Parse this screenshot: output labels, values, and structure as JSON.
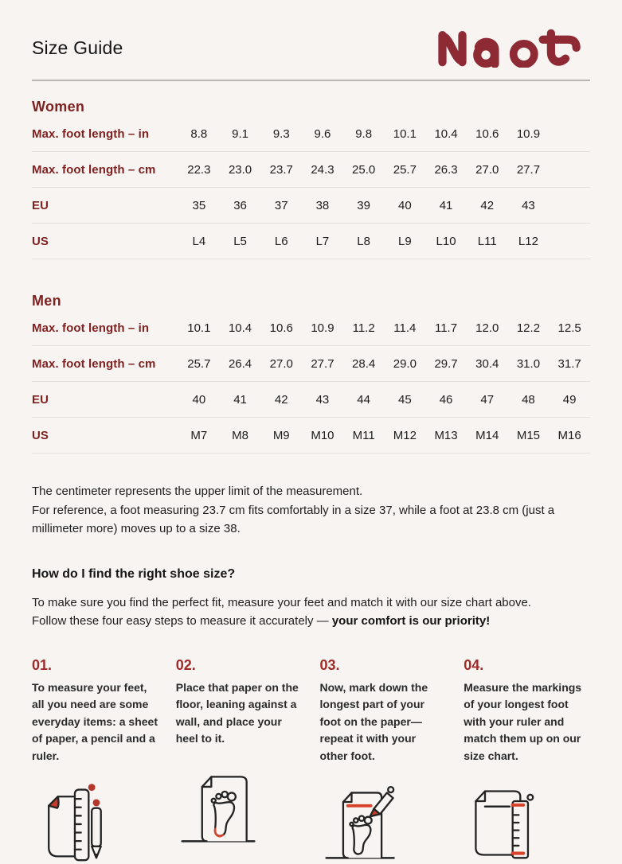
{
  "page": {
    "title": "Size Guide",
    "brand": "Naot"
  },
  "colors": {
    "background": "#f7f4f1",
    "brand_red": "#8d2a33",
    "label_red": "#7f2121",
    "step_number_red": "#a02c2a",
    "icon_accent_red": "#d9432c",
    "text": "#1d1d1d"
  },
  "tables": [
    {
      "section": "Women",
      "rows": [
        {
          "label": "Max. foot length – in",
          "values": [
            "8.8",
            "9.1",
            "9.3",
            "9.6",
            "9.8",
            "10.1",
            "10.4",
            "10.6",
            "10.9"
          ]
        },
        {
          "label": "Max. foot length – cm",
          "values": [
            "22.3",
            "23.0",
            "23.7",
            "24.3",
            "25.0",
            "25.7",
            "26.3",
            "27.0",
            "27.7"
          ]
        },
        {
          "label": "EU",
          "values": [
            "35",
            "36",
            "37",
            "38",
            "39",
            "40",
            "41",
            "42",
            "43"
          ]
        },
        {
          "label": "US",
          "values": [
            "L4",
            "L5",
            "L6",
            "L7",
            "L8",
            "L9",
            "L10",
            "L11",
            "L12"
          ]
        }
      ]
    },
    {
      "section": "Men",
      "rows": [
        {
          "label": "Max. foot length – in",
          "values": [
            "10.1",
            "10.4",
            "10.6",
            "10.9",
            "11.2",
            "11.4",
            "11.7",
            "12.0",
            "12.2",
            "12.5"
          ]
        },
        {
          "label": "Max. foot length – cm",
          "values": [
            "25.7",
            "26.4",
            "27.0",
            "27.7",
            "28.4",
            "29.0",
            "29.7",
            "30.4",
            "31.0",
            "31.7"
          ]
        },
        {
          "label": "EU",
          "values": [
            "40",
            "41",
            "42",
            "43",
            "44",
            "45",
            "46",
            "47",
            "48",
            "49"
          ]
        },
        {
          "label": "US",
          "values": [
            "M7",
            "M8",
            "M9",
            "M10",
            "M11",
            "M12",
            "M13",
            "M14",
            "M15",
            "M16"
          ]
        }
      ]
    }
  ],
  "notes": {
    "p1": "The centimeter represents the upper limit of the measurement.",
    "p2": "For reference, a foot measuring 23.7 cm fits comfortably in a size 37, while a foot at 23.8 cm (just a millimeter more) moves up to a size 38."
  },
  "how_to": {
    "heading": "How do I find the right shoe size?",
    "intro_text": "To make sure you find the perfect fit, measure your feet and match it with our size chart above. Follow these four easy steps to measure it accurately — ",
    "intro_bold": "your comfort is our priority!"
  },
  "steps": [
    {
      "num": "01.",
      "text": "To measure your feet, all you need are some everyday items: a sheet of paper, a pencil and a ruler.",
      "icon": "paper-ruler-pencil-icon"
    },
    {
      "num": "02.",
      "text": "Place that paper on the floor, leaning against a wall, and place your heel to it.",
      "icon": "paper-footprint-floor-icon"
    },
    {
      "num": "03.",
      "text": "Now, mark down the longest part of your foot on the paper—repeat it with your other foot.",
      "icon": "mark-foot-with-pencil-icon"
    },
    {
      "num": "04.",
      "text": "Measure the markings of your longest foot with your ruler and match them up on our size chart.",
      "icon": "measure-markings-ruler-icon"
    }
  ]
}
